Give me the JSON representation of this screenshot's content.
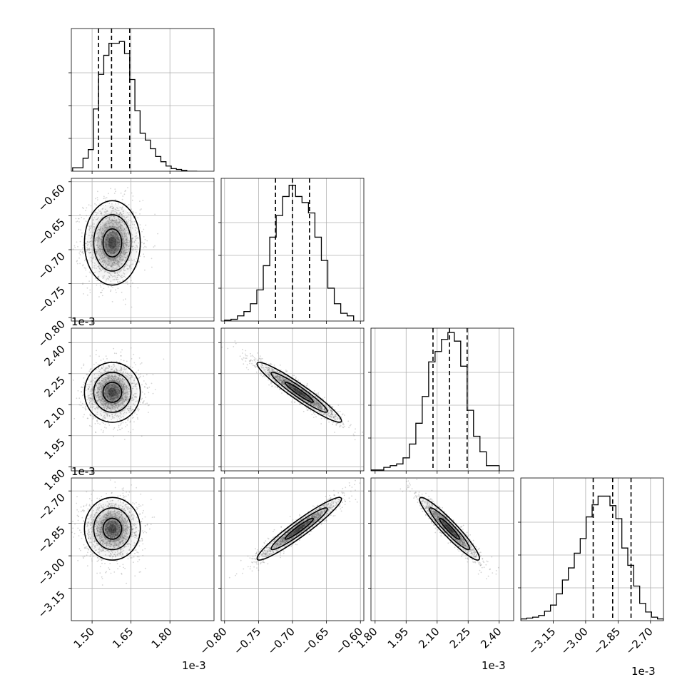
{
  "chart_data": {
    "type": "corner",
    "parameters": [
      {
        "index": 0,
        "range": [
          1.42,
          1.97
        ],
        "ticks": [
          1.5,
          1.65,
          1.8
        ],
        "tick_labels": [
          "1.50",
          "1.65",
          "1.80"
        ],
        "offset_label": "1e-3",
        "quantiles": [
          1.525,
          1.575,
          1.645
        ],
        "hist_x_start": 1.425,
        "hist_x_end": 1.905,
        "hist_counts": [
          0.4,
          0.4,
          1.5,
          2.5,
          7.2,
          11.2,
          13.4,
          14.8,
          14.8,
          15.0,
          13.6,
          10.6,
          7.0,
          4.4,
          3.6,
          2.6,
          1.7,
          1.1,
          0.6,
          0.3,
          0.2,
          0.1,
          0.0,
          0.0
        ]
      },
      {
        "index": 1,
        "range": [
          -0.805,
          -0.595
        ],
        "ticks": [
          -0.8,
          -0.75,
          -0.7,
          -0.65,
          -0.6
        ],
        "tick_labels": [
          "−0.80",
          "−0.75",
          "−0.70",
          "−0.65",
          "−0.60"
        ],
        "offset_label": "1e-3",
        "quantiles": [
          -0.725,
          -0.7,
          -0.675
        ],
        "hist_x_start": -0.8,
        "hist_x_end": -0.61,
        "hist_counts": [
          0.1,
          0.2,
          0.6,
          1.1,
          2.0,
          3.6,
          6.4,
          9.7,
          12.2,
          14.4,
          15.7,
          14.4,
          13.7,
          12.5,
          9.7,
          7.0,
          3.8,
          2.0,
          0.9,
          0.6
        ]
      },
      {
        "index": 2,
        "range": [
          1.78,
          2.47
        ],
        "ticks": [
          1.8,
          1.95,
          2.1,
          2.25,
          2.4
        ],
        "tick_labels": [
          "1.80",
          "1.95",
          "2.10",
          "2.25",
          "2.40"
        ],
        "offset_label": "1e-3",
        "quantiles": [
          2.08,
          2.16,
          2.245
        ],
        "hist_x_start": 1.78,
        "hist_x_end": 2.4,
        "hist_counts": [
          0.1,
          0.1,
          0.4,
          0.6,
          0.8,
          1.5,
          3.1,
          5.5,
          8.6,
          12.6,
          13.8,
          15.2,
          16.0,
          15.0,
          12.1,
          7.0,
          4.0,
          2.2,
          0.6,
          0.6
        ]
      },
      {
        "index": 3,
        "range": [
          -3.3,
          -2.64
        ],
        "ticks": [
          -3.15,
          -3.0,
          -2.85,
          -2.7
        ],
        "tick_labels": [
          "−3.15",
          "−3.00",
          "−2.85",
          "−2.70"
        ],
        "offset_label": "1e-3",
        "quantiles": [
          -2.965,
          -2.875,
          -2.79
        ],
        "hist_x_start": -3.3,
        "hist_x_end": -2.64,
        "hist_counts": [
          0.2,
          0.3,
          0.4,
          0.6,
          1.1,
          1.8,
          3.1,
          4.7,
          6.1,
          7.8,
          9.5,
          12.0,
          13.4,
          14.4,
          14.4,
          13.3,
          11.8,
          8.4,
          6.4,
          4.0,
          2.0,
          1.0,
          0.4,
          0.2
        ]
      }
    ],
    "hist_ylim": [
      0,
      16.5
    ],
    "hist_gridlines": [
      0.25,
      0.5,
      0.75
    ],
    "pairs": [
      {
        "row": 1,
        "col": 0,
        "mx": 1.578,
        "my": -0.69,
        "sx": 0.052,
        "sy": 0.03,
        "rho": 0.0
      },
      {
        "row": 2,
        "col": 0,
        "mx": 1.578,
        "my": 2.16,
        "sx": 0.052,
        "sy": 0.07,
        "rho": 0.0
      },
      {
        "row": 2,
        "col": 1,
        "mx": -0.69,
        "my": 2.16,
        "sx": 0.03,
        "sy": 0.07,
        "rho": -0.95
      },
      {
        "row": 3,
        "col": 0,
        "mx": 1.578,
        "my": -2.875,
        "sx": 0.052,
        "sy": 0.07,
        "rho": 0.0
      },
      {
        "row": 3,
        "col": 1,
        "mx": -0.69,
        "my": -2.875,
        "sx": 0.03,
        "sy": 0.07,
        "rho": 0.95
      },
      {
        "row": 3,
        "col": 2,
        "mx": 2.16,
        "my": -2.875,
        "sx": 0.07,
        "sy": 0.07,
        "rho": -0.94
      }
    ],
    "contour_levels_sigma": [
      0.6,
      1.2,
      1.8
    ],
    "grid": true,
    "colors": {
      "line": "#000000",
      "grid": "#b0b0b0",
      "points": "#888888"
    }
  }
}
